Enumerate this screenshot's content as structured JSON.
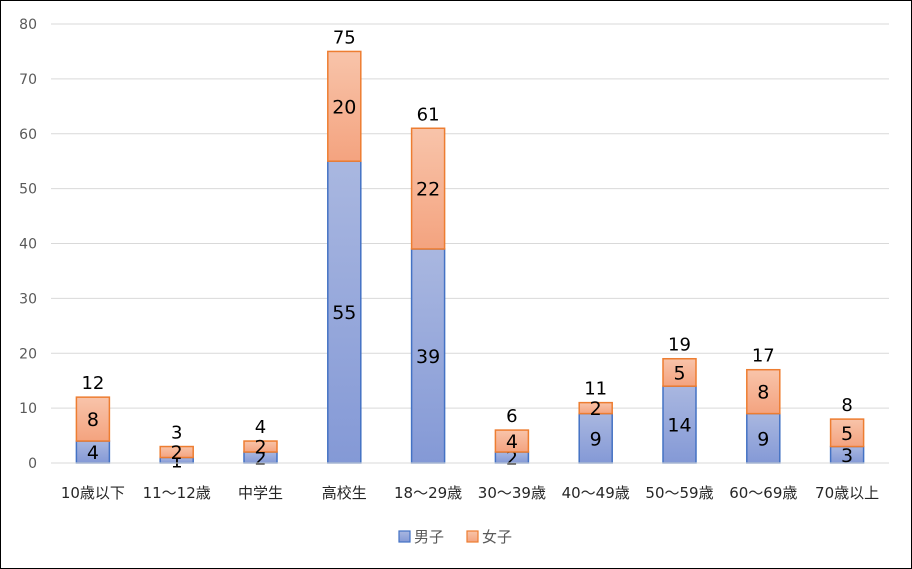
{
  "chart_data": {
    "type": "bar",
    "stacked": true,
    "categories": [
      "10歳以下",
      "11〜12歳",
      "中学生",
      "高校生",
      "18〜29歳",
      "30〜39歳",
      "40〜49歳",
      "50〜59歳",
      "60〜69歳",
      "70歳以上"
    ],
    "series": [
      {
        "name": "男子",
        "values": [
          4,
          1,
          2,
          55,
          39,
          2,
          9,
          14,
          9,
          3
        ],
        "fill_top": "#a9b7e0",
        "fill_bottom": "#8499d6",
        "stroke": "#4472c4"
      },
      {
        "name": "女子",
        "values": [
          8,
          2,
          2,
          20,
          22,
          4,
          2,
          5,
          8,
          5
        ],
        "fill_top": "#f8c4aa",
        "fill_bottom": "#f4a37f",
        "stroke": "#ed7d31"
      }
    ],
    "totals": [
      12,
      3,
      4,
      75,
      61,
      6,
      11,
      19,
      17,
      8
    ],
    "ylim": [
      0,
      80
    ],
    "yticks": [
      0,
      10,
      20,
      30,
      40,
      50,
      60,
      70,
      80
    ],
    "grid": true,
    "legend_position": "bottom",
    "title": "",
    "xlabel": "",
    "ylabel": ""
  }
}
